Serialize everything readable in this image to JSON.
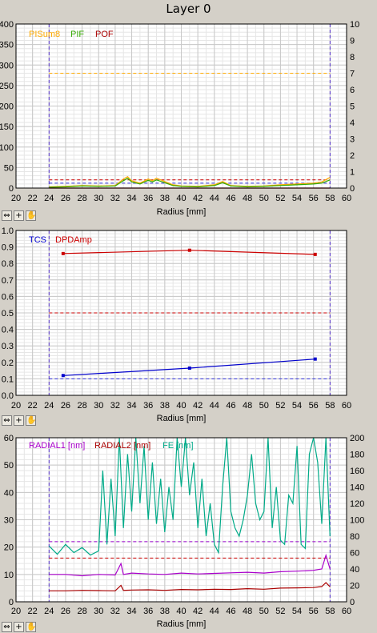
{
  "window_title": "Layer 0",
  "toolbar": {
    "pan_icon": "pan-icon",
    "zoom_icon": "zoom-icon",
    "hand_icon": "hand-icon"
  },
  "colors": {
    "plot_bg": "#ffffff",
    "grid": "#c8c8c8",
    "panel": "#d4d0c8",
    "limit_blue": "#3333dd",
    "limit_red": "#cc0000"
  },
  "chart_data": [
    {
      "type": "line",
      "xlabel": "Radius [mm]",
      "xlim": [
        20,
        60
      ],
      "xticks": [
        "20",
        "22",
        "24",
        "26",
        "28",
        "30",
        "32",
        "34",
        "36",
        "38",
        "40",
        "42",
        "44",
        "46",
        "48",
        "50",
        "52",
        "54",
        "56",
        "58",
        "60"
      ],
      "ylim": [
        0,
        400
      ],
      "yticks_left": [
        "0",
        "50",
        "100",
        "150",
        "200",
        "250",
        "300",
        "350",
        "400"
      ],
      "ylim_right": [
        0,
        10
      ],
      "yticks_right": [
        "0",
        "1",
        "2",
        "3",
        "4",
        "5",
        "6",
        "7",
        "8",
        "9",
        "10"
      ],
      "vlines": [
        24,
        58
      ],
      "hlines": [
        {
          "axis": "left",
          "y": 280,
          "color": "#ffaa00"
        },
        {
          "axis": "left",
          "y": 20,
          "color": "#cc0000"
        },
        {
          "axis": "left",
          "y": 12,
          "color": "#3333dd"
        }
      ],
      "legend": [
        "PISum8",
        "PIF",
        "POF"
      ],
      "series": [
        {
          "name": "PISum8",
          "color": "#ffaa00",
          "axis": "left",
          "x": [
            24,
            26,
            28,
            30,
            32,
            33,
            33.5,
            34,
            35,
            36,
            36.5,
            37,
            38,
            39,
            40,
            42,
            44,
            45,
            46,
            48,
            50,
            52,
            54,
            56,
            57,
            58
          ],
          "y": [
            3,
            4,
            6,
            5,
            6,
            22,
            28,
            18,
            12,
            22,
            18,
            24,
            16,
            8,
            5,
            4,
            8,
            16,
            6,
            4,
            5,
            8,
            10,
            12,
            15,
            26
          ]
        },
        {
          "name": "PIF",
          "color": "#33aa00",
          "axis": "left",
          "x": [
            24,
            26,
            28,
            30,
            32,
            33,
            33.5,
            34,
            35,
            36,
            36.5,
            37,
            38,
            39,
            40,
            42,
            44,
            45,
            46,
            48,
            50,
            52,
            54,
            56,
            57,
            58
          ],
          "y": [
            2,
            3,
            5,
            4,
            5,
            18,
            24,
            15,
            10,
            19,
            15,
            20,
            13,
            6,
            4,
            3,
            6,
            13,
            5,
            3,
            4,
            6,
            8,
            10,
            12,
            20
          ]
        },
        {
          "name": "POF",
          "color": "#aa0000",
          "axis": "left",
          "x": [
            24,
            30,
            40,
            50,
            58
          ],
          "y": [
            0,
            0,
            0,
            0,
            0
          ]
        }
      ]
    },
    {
      "type": "line",
      "xlabel": "Radius [mm]",
      "xlim": [
        20,
        60
      ],
      "xticks": [
        "20",
        "22",
        "24",
        "26",
        "28",
        "30",
        "32",
        "34",
        "36",
        "38",
        "40",
        "42",
        "44",
        "46",
        "48",
        "50",
        "52",
        "54",
        "56",
        "58",
        "60"
      ],
      "ylim": [
        0,
        1
      ],
      "yticks_left": [
        "0.0",
        "0.1",
        "0.2",
        "0.3",
        "0.4",
        "0.5",
        "0.6",
        "0.7",
        "0.8",
        "0.9",
        "1.0"
      ],
      "vlines": [
        24,
        58
      ],
      "hlines": [
        {
          "axis": "left",
          "y": 0.5,
          "color": "#cc0000"
        },
        {
          "axis": "left",
          "y": 0.1,
          "color": "#3333dd"
        }
      ],
      "legend": [
        "TCS",
        "DPDAmp"
      ],
      "series": [
        {
          "name": "TCS",
          "color": "#0000cc",
          "axis": "left",
          "markers": true,
          "x": [
            25.7,
            41,
            56.2
          ],
          "y": [
            0.12,
            0.165,
            0.22
          ]
        },
        {
          "name": "DPDAmp",
          "color": "#cc0000",
          "axis": "left",
          "markers": true,
          "x": [
            25.7,
            41,
            56.2
          ],
          "y": [
            0.86,
            0.88,
            0.855
          ]
        }
      ]
    },
    {
      "type": "line",
      "xlabel": "Radius [mm]",
      "xlim": [
        20,
        60
      ],
      "xticks": [
        "20",
        "22",
        "24",
        "26",
        "28",
        "30",
        "32",
        "34",
        "36",
        "38",
        "40",
        "42",
        "44",
        "46",
        "48",
        "50",
        "52",
        "54",
        "56",
        "58",
        "60"
      ],
      "ylim": [
        0,
        60
      ],
      "yticks_left": [
        "0",
        "10",
        "20",
        "30",
        "40",
        "50",
        "60"
      ],
      "ylim_right": [
        0,
        200
      ],
      "yticks_right": [
        "0",
        "20",
        "40",
        "60",
        "80",
        "100",
        "120",
        "140",
        "160",
        "180",
        "200"
      ],
      "vlines": [
        24,
        58
      ],
      "hlines": [
        {
          "axis": "left",
          "y": 22,
          "color": "#9900cc"
        },
        {
          "axis": "left",
          "y": 16,
          "color": "#cc0000"
        }
      ],
      "legend": [
        "RADIAL1 [nm]",
        "RADIAL2 [nm]",
        "FE [nm]"
      ],
      "series": [
        {
          "name": "RADIAL1 [nm]",
          "color": "#aa00cc",
          "axis": "left",
          "x": [
            24,
            26,
            28,
            30,
            32,
            32.7,
            33,
            34,
            36,
            38,
            40,
            42,
            44,
            46,
            48,
            50,
            52,
            54,
            56,
            57,
            57.5,
            58
          ],
          "y": [
            10,
            10,
            9.5,
            10,
            9.8,
            14,
            10,
            10.5,
            10.2,
            10,
            10.5,
            10.2,
            10.4,
            10.6,
            10.8,
            10.5,
            11,
            11.2,
            11.5,
            12,
            17,
            12
          ]
        },
        {
          "name": "RADIAL2 [nm]",
          "color": "#aa0000",
          "axis": "left",
          "x": [
            24,
            26,
            28,
            30,
            32,
            32.7,
            33,
            34,
            36,
            38,
            40,
            42,
            44,
            46,
            48,
            50,
            52,
            54,
            56,
            57,
            57.5,
            58
          ],
          "y": [
            4,
            4,
            4.2,
            4.1,
            4,
            6,
            4.2,
            4.3,
            4.4,
            4.2,
            4.5,
            4.4,
            4.6,
            4.5,
            4.8,
            4.6,
            5,
            5.1,
            5.2,
            5.6,
            7,
            5.5
          ]
        },
        {
          "name": "FE [nm]",
          "color": "#00aa88",
          "axis": "right",
          "x": [
            24,
            25,
            26,
            27,
            28,
            29,
            30,
            30.5,
            31,
            31.5,
            32,
            32.5,
            33,
            33.5,
            34,
            34.5,
            35,
            35.5,
            36,
            36.5,
            37,
            37.5,
            38,
            38.5,
            39,
            39.5,
            40,
            40.5,
            41,
            41.5,
            42,
            42.5,
            43,
            43.5,
            44,
            44.5,
            45,
            45.5,
            46,
            46.5,
            47,
            47.5,
            48,
            48.5,
            49,
            49.5,
            50,
            50.5,
            51,
            51.5,
            52,
            52.5,
            53,
            53.5,
            54,
            54.5,
            55,
            55.5,
            56,
            56.5,
            57,
            57.5,
            58
          ],
          "y": [
            68,
            58,
            70,
            60,
            66,
            57,
            62,
            160,
            70,
            150,
            80,
            200,
            90,
            180,
            110,
            200,
            120,
            190,
            100,
            170,
            95,
            150,
            85,
            140,
            100,
            200,
            140,
            200,
            130,
            170,
            90,
            150,
            80,
            120,
            70,
            60,
            140,
            200,
            110,
            90,
            80,
            100,
            130,
            180,
            120,
            100,
            110,
            200,
            90,
            140,
            75,
            70,
            130,
            120,
            190,
            70,
            65,
            180,
            200,
            170,
            95,
            200,
            80
          ]
        }
      ]
    }
  ]
}
